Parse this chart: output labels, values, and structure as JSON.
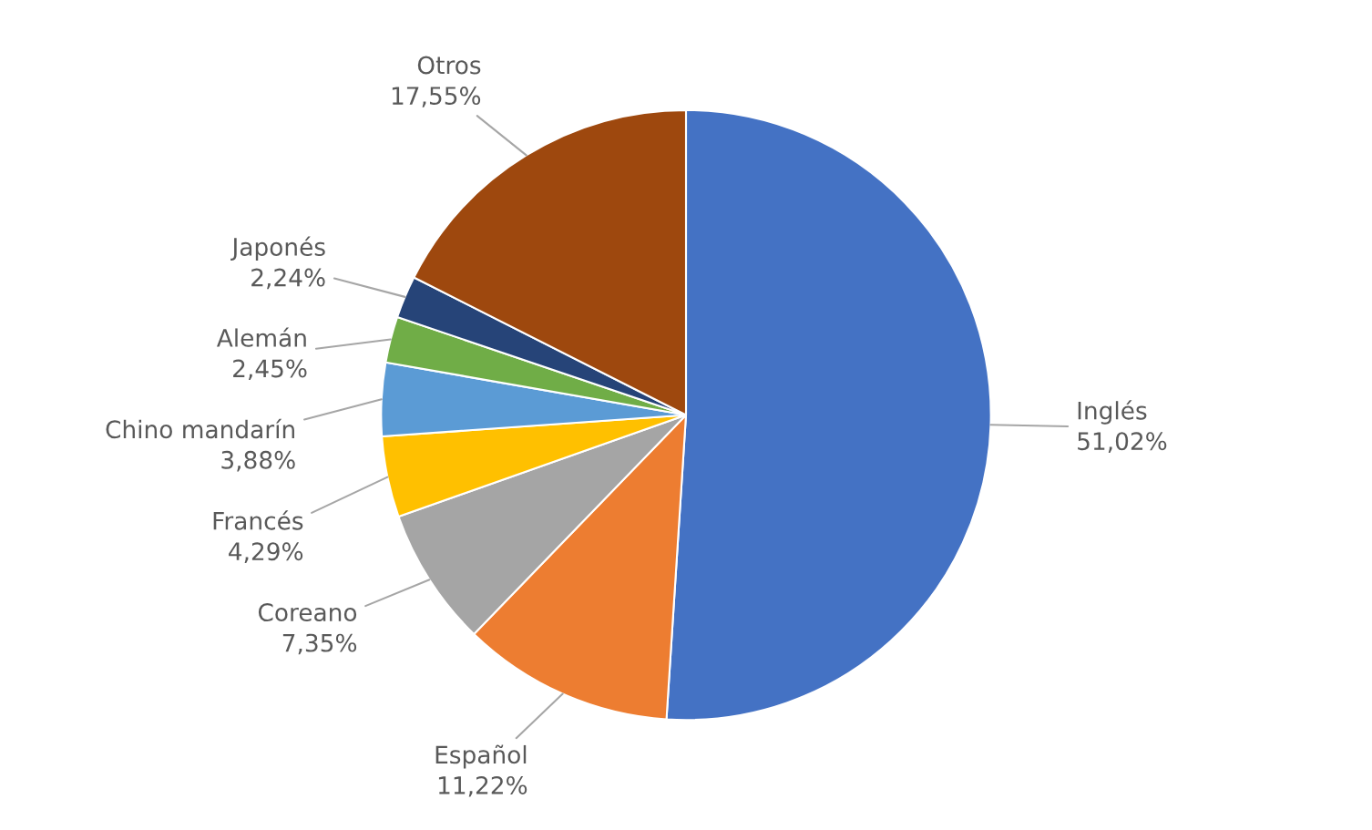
{
  "chart_data": {
    "type": "pie",
    "categories": [
      "Inglés",
      "Español",
      "Coreano",
      "Francés",
      "Chino mandarín",
      "Alemán",
      "Japonés",
      "Otros"
    ],
    "values": [
      51.02,
      11.22,
      7.35,
      4.29,
      3.88,
      2.45,
      2.24,
      17.55
    ],
    "value_labels": [
      "51,02%",
      "11,22%",
      "7,35%",
      "4,29%",
      "3,88%",
      "2,45%",
      "2,24%",
      "17,55%"
    ],
    "colors": [
      "#4472c4",
      "#ed7d31",
      "#a5a5a5",
      "#ffc000",
      "#5b9bd5",
      "#70ad47",
      "#264478",
      "#9e480e"
    ]
  }
}
